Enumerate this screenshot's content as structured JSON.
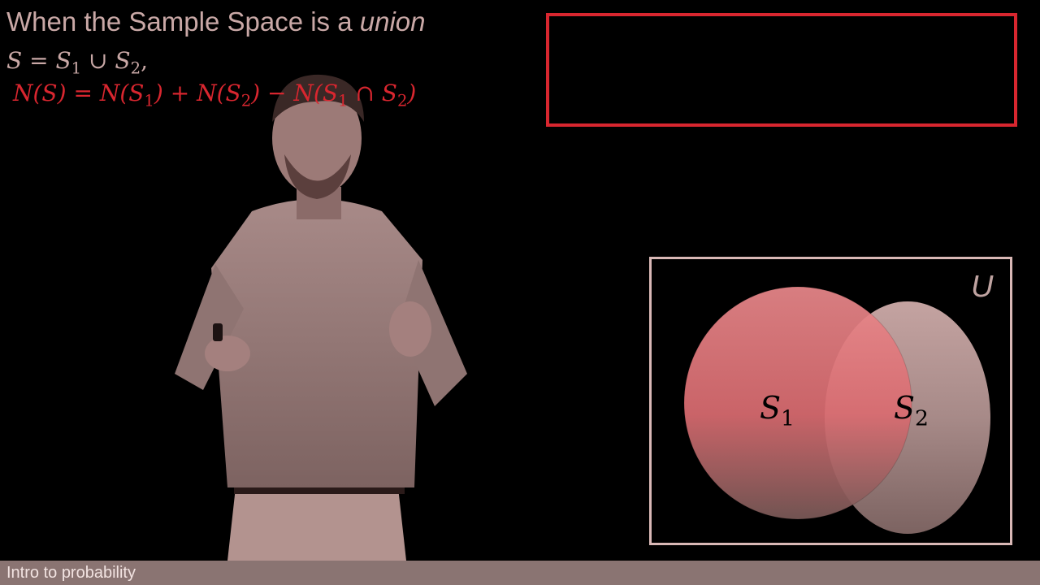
{
  "formula": {
    "line1_prefix": "When the Sample Space is a ",
    "line1_emphasis": "union",
    "s_symbol": "S",
    "equals": "=",
    "s1_symbol": "S",
    "s1_sub": "1",
    "union_symbol": "∪",
    "s2_symbol": "S",
    "s2_sub": "2",
    "line2_suffix": ",",
    "n_of_s": "N(S)",
    "eq2": "=",
    "n_s1_open": "N(S",
    "n_s1_sub": "1",
    "n_s1_close": ")",
    "plus": "+",
    "n_s2_open": "N(S",
    "n_s2_sub": "2",
    "n_s2_close": ")",
    "minus": "−",
    "n_int_open": "N(S",
    "n_int_sub1": "1",
    "n_int_cap": "∩",
    "n_int_s2": "S",
    "n_int_sub2": "2",
    "n_int_close": ")"
  },
  "venn": {
    "universe_label": "U",
    "set1_label": "S",
    "set1_sub": "1",
    "set2_label": "S",
    "set2_sub": "2"
  },
  "caption": {
    "course_title": "Intro to probability"
  },
  "colors": {
    "accent_red": "#d8262f",
    "text_pink": "#c9a8a6",
    "tint": "#9b7a78"
  }
}
